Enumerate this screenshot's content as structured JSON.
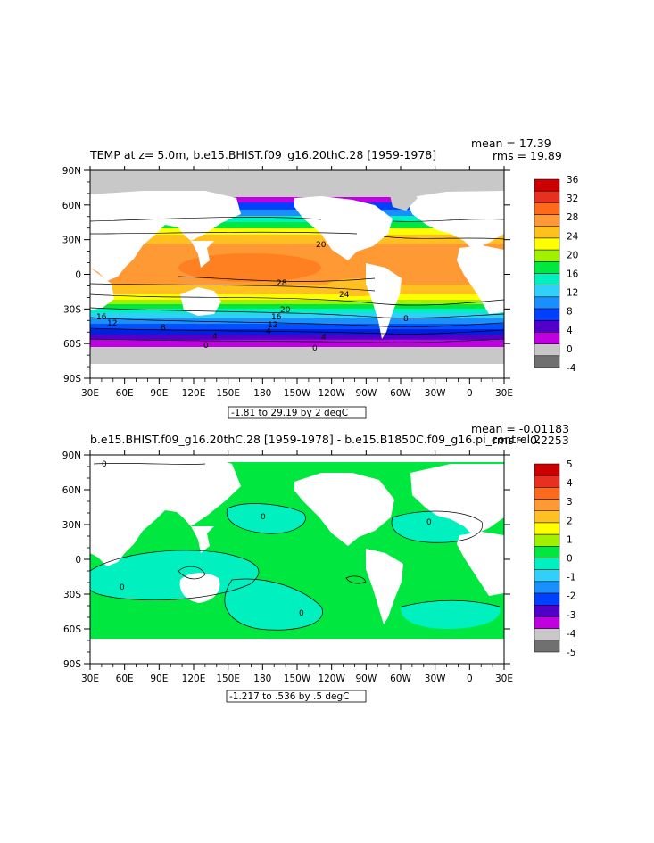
{
  "chart_data": [
    {
      "type": "heatmap",
      "title": "TEMP at z=    5.0m, b.e15.BHIST.f09_g16.20thC.28 [1959-1978]",
      "stats": {
        "mean": "mean = 17.39",
        "rms": "rms = 19.89"
      },
      "x_tick_labels": [
        "30E",
        "60E",
        "90E",
        "120E",
        "150E",
        "180",
        "150W",
        "120W",
        "90W",
        "60W",
        "30W",
        "0",
        "30E"
      ],
      "y_tick_labels": [
        "90N",
        "60N",
        "30N",
        "0",
        "30S",
        "60S",
        "90S"
      ],
      "xlim": [
        30,
        390
      ],
      "ylim": [
        -90,
        90
      ],
      "colorbar_labels": [
        "36",
        "32",
        "28",
        "24",
        "20",
        "16",
        "12",
        "8",
        "4",
        "0",
        "-4"
      ],
      "colorbar_colors": [
        "#cc0000",
        "#e83020",
        "#ff6a1a",
        "#ff9933",
        "#ffc020",
        "#ffff00",
        "#a0f000",
        "#00e840",
        "#00f0c0",
        "#30d0f8",
        "#1a90ff",
        "#0040ff",
        "#5000c8",
        "#c000e0",
        "#c8c8c8",
        "#707070"
      ],
      "contour_labels": [
        "20",
        "28",
        "24",
        "20",
        "16",
        "12",
        "16",
        "12",
        "8",
        "4",
        "8",
        "4",
        "0",
        "0",
        "4"
      ],
      "range_label": "-1.81 to 29.19 by 2 degC"
    },
    {
      "type": "heatmap",
      "title": "b.e15.BHIST.f09_g16.20thC.28 [1959-1978] - b.e15.B1850C.f09_g16.pi_control.2",
      "stats": {
        "mean": "mean = -0.01183",
        "rms": "rms = 0.2253"
      },
      "x_tick_labels": [
        "30E",
        "60E",
        "90E",
        "120E",
        "150E",
        "180",
        "150W",
        "120W",
        "90W",
        "60W",
        "30W",
        "0",
        "30E"
      ],
      "y_tick_labels": [
        "90N",
        "60N",
        "30N",
        "0",
        "30S",
        "60S",
        "90S"
      ],
      "xlim": [
        30,
        390
      ],
      "ylim": [
        -90,
        90
      ],
      "colorbar_labels": [
        "5",
        "4",
        "3",
        "2",
        "1",
        "0",
        "-1",
        "-2",
        "-3",
        "-4",
        "-5"
      ],
      "colorbar_colors": [
        "#cc0000",
        "#e83020",
        "#ff6a1a",
        "#ff9933",
        "#ffc020",
        "#ffff00",
        "#a0f000",
        "#00e840",
        "#00f0c0",
        "#30d0f8",
        "#1a90ff",
        "#0040ff",
        "#5000c8",
        "#c000e0",
        "#c8c8c8",
        "#707070"
      ],
      "contour_labels": [
        "0",
        "0",
        "0",
        "0",
        "0"
      ],
      "range_label": "-1.217 to .536 by .5 degC"
    }
  ]
}
